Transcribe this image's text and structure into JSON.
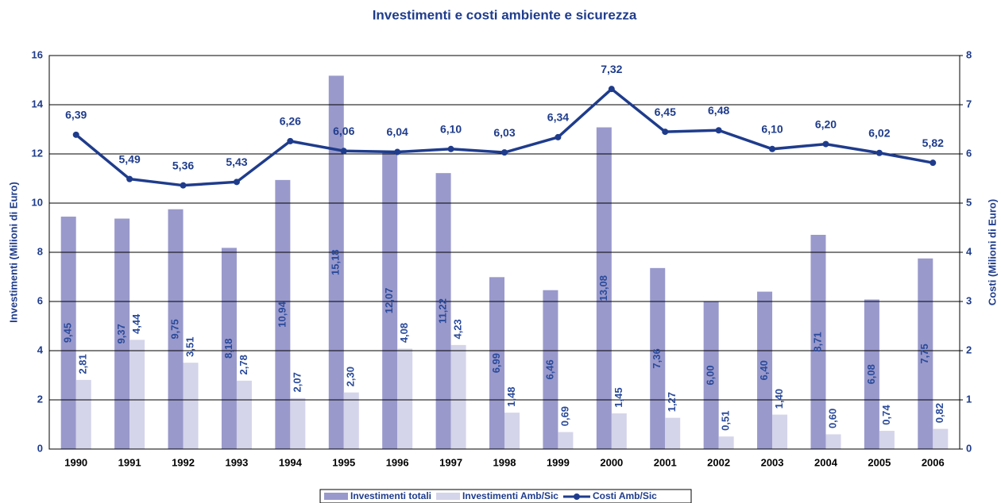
{
  "chart_data": {
    "type": "bar_line",
    "title": "Investimenti e costi ambiente e sicurezza",
    "ylabel": "Investimenti (Milioni di Euro)",
    "y2label": "Costi (Milioni di Euro)",
    "categories": [
      "1990",
      "1991",
      "1992",
      "1993",
      "1994",
      "1995",
      "1996",
      "1997",
      "1998",
      "1999",
      "2000",
      "2001",
      "2002",
      "2003",
      "2004",
      "2005",
      "2006"
    ],
    "series": [
      {
        "name": "Investimenti totali",
        "color": "#9999cc",
        "kind": "bar",
        "values": [
          9.45,
          9.37,
          9.75,
          8.18,
          10.94,
          15.18,
          12.07,
          11.22,
          6.99,
          6.46,
          13.08,
          7.36,
          6.0,
          6.4,
          8.71,
          6.08,
          7.75
        ],
        "value_labels": [
          "9,45",
          "9,37",
          "9,75",
          "8,18",
          "10,94",
          "15,18",
          "12,07",
          "11,22",
          "6,99",
          "6,46",
          "13,08",
          "7,36",
          "6,00",
          "6,40",
          "8,71",
          "6,08",
          "7,75"
        ]
      },
      {
        "name": "Investimenti Amb/Sic",
        "color": "#d4d4ea",
        "kind": "bar",
        "values": [
          2.81,
          4.44,
          3.51,
          2.78,
          2.07,
          2.3,
          4.08,
          4.23,
          1.48,
          0.69,
          1.45,
          1.27,
          0.51,
          1.4,
          0.6,
          0.74,
          0.82
        ],
        "value_labels": [
          "2,81",
          "4,44",
          "3,51",
          "2,78",
          "2,07",
          "2,30",
          "4,08",
          "4,23",
          "1,48",
          "0,69",
          "1,45",
          "1,27",
          "0,51",
          "1,40",
          "0,60",
          "0,74",
          "0,82"
        ]
      },
      {
        "name": "Costi Amb/Sic",
        "color": "#1f3c8c",
        "kind": "line",
        "axis": "y2",
        "values": [
          6.39,
          5.49,
          5.36,
          5.43,
          6.26,
          6.06,
          6.04,
          6.1,
          6.03,
          6.34,
          7.32,
          6.45,
          6.48,
          6.1,
          6.2,
          6.02,
          5.82
        ],
        "value_labels": [
          "6,39",
          "5,49",
          "5,36",
          "5,43",
          "6,26",
          "6,06",
          "6,04",
          "6,10",
          "6,03",
          "6,34",
          "7,32",
          "6,45",
          "6,48",
          "6,10",
          "6,20",
          "6,02",
          "5,82"
        ]
      }
    ],
    "ylim": [
      0,
      16
    ],
    "yticks": [
      0,
      2,
      4,
      6,
      8,
      10,
      12,
      14,
      16
    ],
    "y2lim": [
      0,
      8
    ],
    "y2ticks": [
      0,
      1,
      2,
      3,
      4,
      5,
      6,
      7,
      8
    ],
    "grid": true,
    "legend": "bottom"
  }
}
